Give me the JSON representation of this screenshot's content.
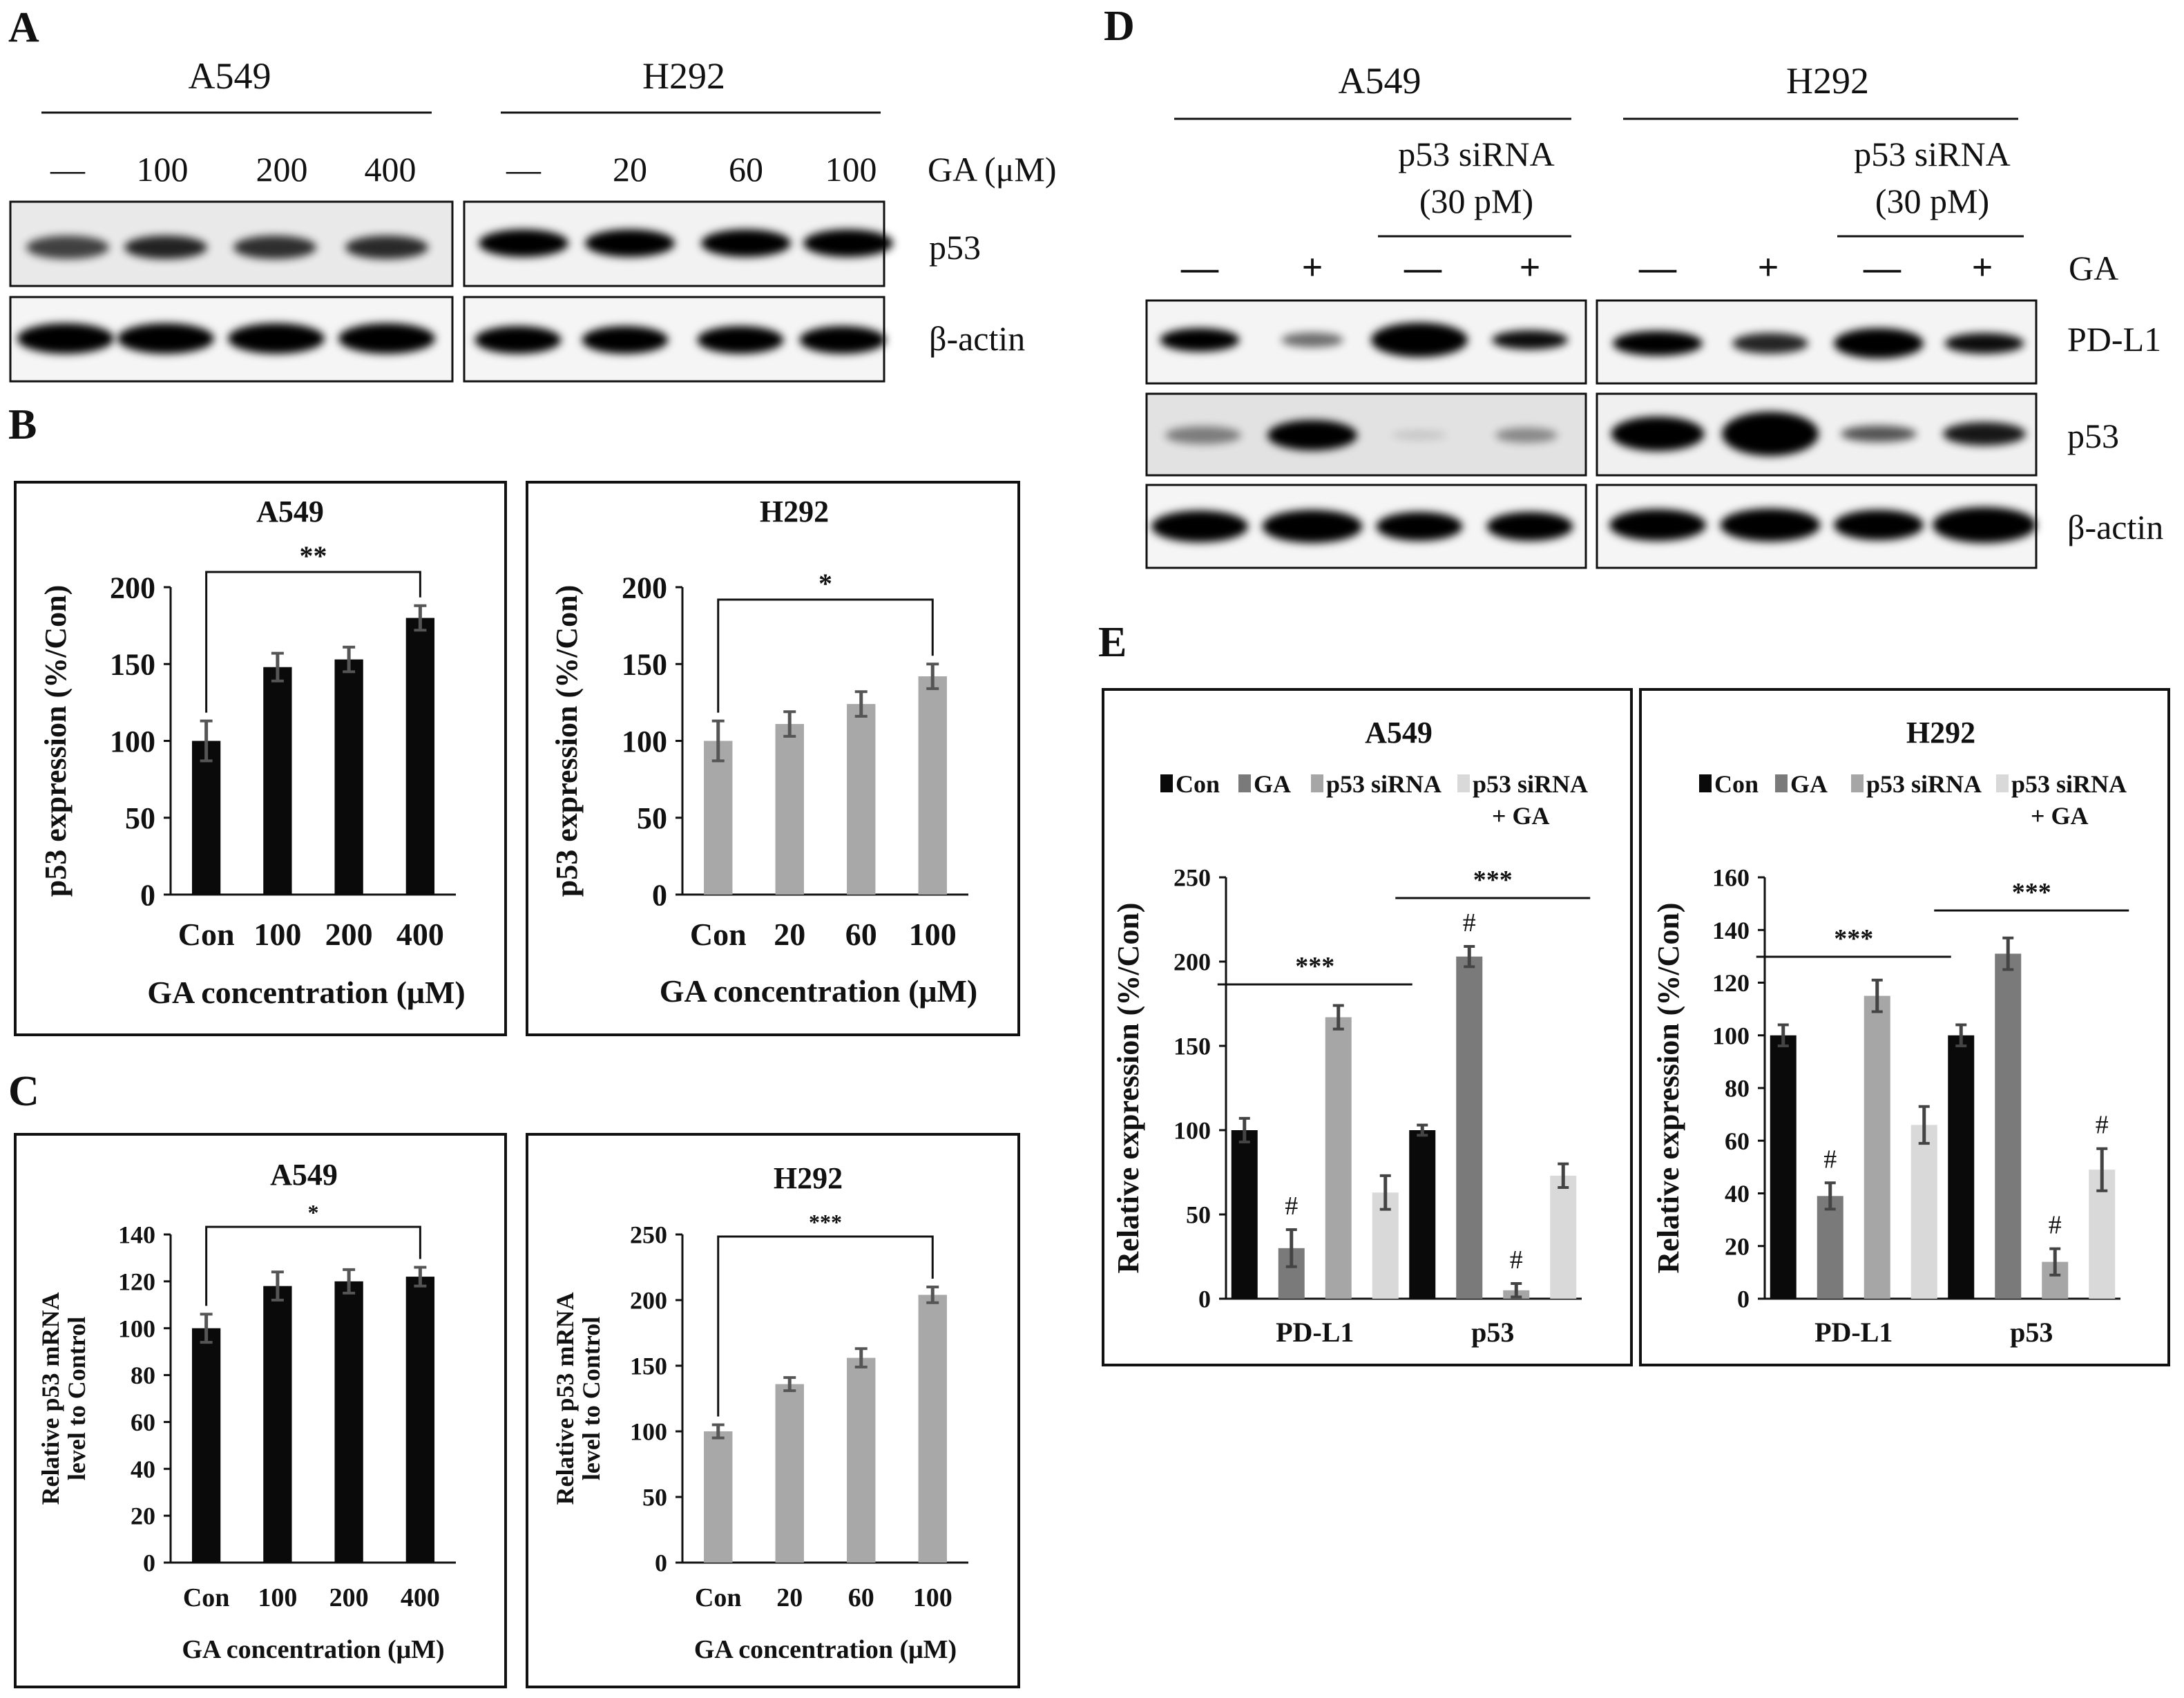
{
  "panels": {
    "A": {
      "letter": "A",
      "groups": [
        {
          "cell_line": "A549",
          "lanes": [
            "—",
            "100",
            "200",
            "400"
          ]
        },
        {
          "cell_line": "H292",
          "lanes": [
            "—",
            "20",
            "60",
            "100"
          ]
        }
      ],
      "treatment_label": "GA (μM)",
      "blot_labels": [
        "p53",
        "β-actin"
      ]
    },
    "D": {
      "letter": "D",
      "groups": [
        {
          "cell_line": "A549",
          "lanes": [
            "—",
            "+",
            "—",
            "+"
          ]
        },
        {
          "cell_line": "H292",
          "lanes": [
            "—",
            "+",
            "—",
            "+"
          ]
        }
      ],
      "sirna_label_line1": "p53 siRNA",
      "sirna_label_line2": "(30 pM)",
      "treatment_label": "GA",
      "blot_labels": [
        "PD-L1",
        "p53",
        "β-actin"
      ]
    },
    "B": {
      "letter": "B"
    },
    "C": {
      "letter": "C"
    },
    "E": {
      "letter": "E"
    }
  },
  "chart_data": [
    {
      "id": "B-A549",
      "type": "bar",
      "title": "A549",
      "xlabel": "GA concentration (μM)",
      "ylabel": "p53 expression (%/Con)",
      "categories": [
        "Con",
        "100",
        "200",
        "400"
      ],
      "values": [
        100,
        148,
        153,
        180
      ],
      "errors": [
        13,
        9,
        8,
        8
      ],
      "ylim": [
        0,
        200
      ],
      "yticks": [
        0,
        50,
        100,
        150,
        200
      ],
      "color": "#0a0a0a",
      "significance": [
        {
          "from": 0,
          "to": 3,
          "label": "**"
        }
      ]
    },
    {
      "id": "B-H292",
      "type": "bar",
      "title": "H292",
      "xlabel": "GA concentration (μM)",
      "ylabel": "p53 expression (%/Con)",
      "categories": [
        "Con",
        "20",
        "60",
        "100"
      ],
      "values": [
        100,
        111,
        124,
        142
      ],
      "errors": [
        13,
        8,
        8,
        8
      ],
      "ylim": [
        0,
        200
      ],
      "yticks": [
        0,
        50,
        100,
        150,
        200
      ],
      "color": "#a8a8a8",
      "significance": [
        {
          "from": 0,
          "to": 3,
          "label": "*"
        }
      ]
    },
    {
      "id": "C-A549",
      "type": "bar",
      "title": "A549",
      "xlabel": "GA concentration (μM)",
      "ylabel": "Relative p53 mRNA level to Control",
      "ylabel_lines": [
        "Relative p53 mRNA",
        "level to Control"
      ],
      "categories": [
        "Con",
        "100",
        "200",
        "400"
      ],
      "values": [
        100,
        118,
        120,
        122
      ],
      "errors": [
        6,
        6,
        5,
        4
      ],
      "ylim": [
        0,
        140
      ],
      "yticks": [
        0,
        20,
        40,
        60,
        80,
        100,
        120,
        140
      ],
      "color": "#0a0a0a",
      "significance": [
        {
          "from": 0,
          "to": 3,
          "label": "*"
        }
      ]
    },
    {
      "id": "C-H292",
      "type": "bar",
      "title": "H292",
      "xlabel": "GA concentration (μM)",
      "ylabel": "Relative p53 mRNA level to Control",
      "ylabel_lines": [
        "Relative p53 mRNA",
        "level to Control"
      ],
      "categories": [
        "Con",
        "20",
        "60",
        "100"
      ],
      "values": [
        100,
        136,
        156,
        204
      ],
      "errors": [
        5,
        5,
        7,
        6
      ],
      "ylim": [
        0,
        250
      ],
      "yticks": [
        0,
        50,
        100,
        150,
        200,
        250
      ],
      "color": "#a8a8a8",
      "significance": [
        {
          "from": 0,
          "to": 3,
          "label": "***"
        }
      ]
    },
    {
      "id": "E-A549",
      "type": "bar",
      "title": "A549",
      "ylabel": "Relative expression (%/Con)",
      "categories": [
        "PD-L1",
        "p53"
      ],
      "legend": [
        {
          "label": "Con",
          "color": "#0a0a0a"
        },
        {
          "label": "GA",
          "color": "#7a7a7a"
        },
        {
          "label": "p53 siRNA",
          "color": "#a6a6a6"
        },
        {
          "label": "p53 siRNA + GA",
          "lines": [
            "p53 siRNA",
            "+ GA"
          ],
          "color": "#d9d9d9"
        }
      ],
      "series": [
        {
          "values": [
            100,
            100
          ],
          "errors": [
            7,
            3
          ]
        },
        {
          "values": [
            30,
            203
          ],
          "errors": [
            11,
            6
          ],
          "marks": [
            "#",
            "#"
          ]
        },
        {
          "values": [
            167,
            5
          ],
          "errors": [
            7,
            4
          ],
          "marks": [
            "",
            "#"
          ]
        },
        {
          "values": [
            63,
            73
          ],
          "errors": [
            10,
            7
          ]
        }
      ],
      "ylim": [
        0,
        250
      ],
      "yticks": [
        0,
        50,
        100,
        150,
        200,
        250
      ],
      "significance": [
        {
          "category": 0,
          "label": "***"
        },
        {
          "category": 1,
          "label": "***"
        }
      ]
    },
    {
      "id": "E-H292",
      "type": "bar",
      "title": "H292",
      "ylabel": "Relative expression (%/Con)",
      "categories": [
        "PD-L1",
        "p53"
      ],
      "legend": [
        {
          "label": "Con",
          "color": "#0a0a0a"
        },
        {
          "label": "GA",
          "color": "#7a7a7a"
        },
        {
          "label": "p53 siRNA",
          "color": "#a6a6a6"
        },
        {
          "label": "p53 siRNA + GA",
          "lines": [
            "p53 siRNA",
            "+ GA"
          ],
          "color": "#d9d9d9"
        }
      ],
      "series": [
        {
          "values": [
            100,
            100
          ],
          "errors": [
            4,
            4
          ]
        },
        {
          "values": [
            39,
            131
          ],
          "errors": [
            5,
            6
          ],
          "marks": [
            "#",
            ""
          ]
        },
        {
          "values": [
            115,
            14
          ],
          "errors": [
            6,
            5
          ],
          "marks": [
            "",
            "#"
          ]
        },
        {
          "values": [
            66,
            49
          ],
          "errors": [
            7,
            8
          ],
          "marks": [
            "",
            "#"
          ]
        }
      ],
      "ylim": [
        0,
        160
      ],
      "yticks": [
        0,
        20,
        40,
        60,
        80,
        100,
        120,
        140,
        160
      ],
      "significance": [
        {
          "category": 0,
          "label": "***"
        },
        {
          "category": 1,
          "label": "***"
        }
      ]
    }
  ]
}
